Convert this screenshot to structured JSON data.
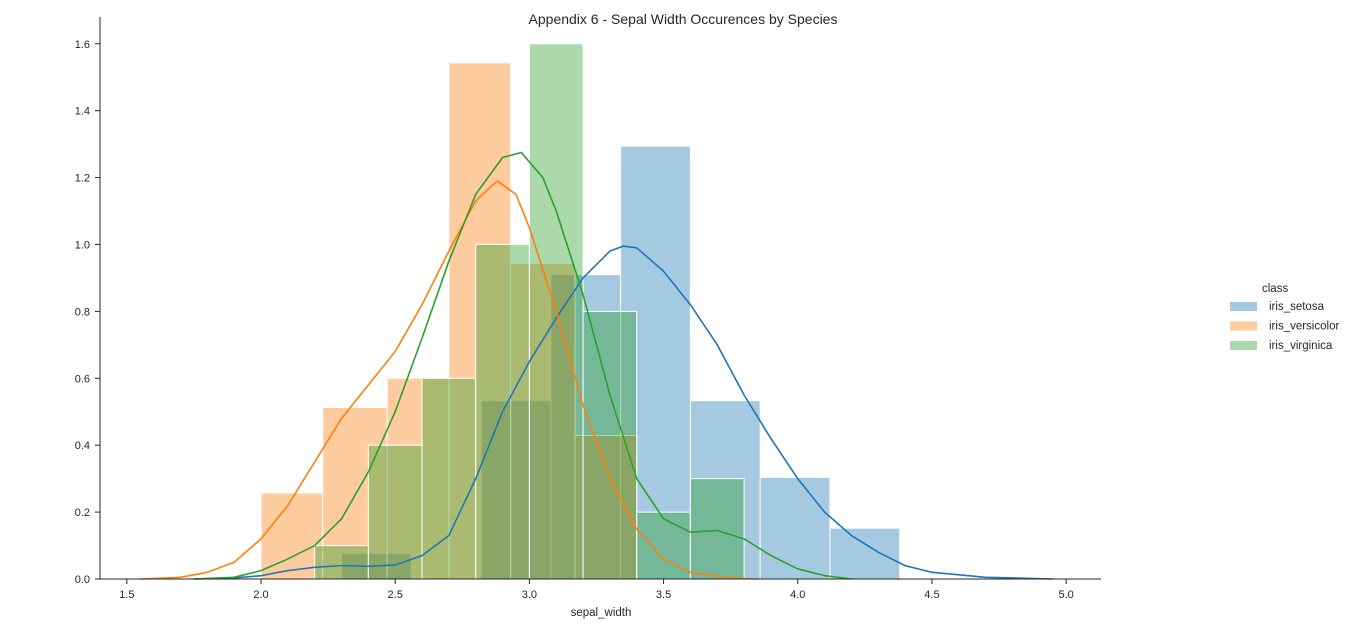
{
  "chart_data": {
    "type": "bar",
    "title": "Appendix 6 - Sepal Width Occurences by Species",
    "xlabel": "sepal_width",
    "ylabel": "",
    "xlim": [
      1.4,
      5.13
    ],
    "ylim": [
      0,
      1.68
    ],
    "x_ticks": [
      "1.5",
      "2.0",
      "2.5",
      "3.0",
      "3.5",
      "4.0",
      "4.5",
      "5.0"
    ],
    "y_ticks": [
      "0.0",
      "0.2",
      "0.4",
      "0.6",
      "0.8",
      "1.0",
      "1.2",
      "1.4",
      "1.6"
    ],
    "grid": false,
    "legend": {
      "title": "class",
      "placement": "right"
    },
    "series": [
      {
        "name": "iris_setosa",
        "color": "#1f77b4",
        "bins": [
          {
            "x0": 2.3,
            "x1": 2.56,
            "y": 0.077
          },
          {
            "x0": 2.56,
            "x1": 2.82,
            "y": 0.0
          },
          {
            "x0": 2.82,
            "x1": 3.08,
            "y": 0.533
          },
          {
            "x0": 3.08,
            "x1": 3.34,
            "y": 0.91
          },
          {
            "x0": 3.34,
            "x1": 3.6,
            "y": 1.294
          },
          {
            "x0": 3.6,
            "x1": 3.86,
            "y": 0.533
          },
          {
            "x0": 3.86,
            "x1": 4.12,
            "y": 0.304
          },
          {
            "x0": 4.12,
            "x1": 4.38,
            "y": 0.152
          }
        ],
        "kde": [
          [
            1.75,
            0.0
          ],
          [
            1.9,
            0.003
          ],
          [
            2.0,
            0.01
          ],
          [
            2.1,
            0.025
          ],
          [
            2.2,
            0.035
          ],
          [
            2.3,
            0.04
          ],
          [
            2.4,
            0.038
          ],
          [
            2.5,
            0.042
          ],
          [
            2.6,
            0.07
          ],
          [
            2.7,
            0.13
          ],
          [
            2.8,
            0.3
          ],
          [
            2.9,
            0.5
          ],
          [
            3.0,
            0.65
          ],
          [
            3.1,
            0.78
          ],
          [
            3.2,
            0.9
          ],
          [
            3.3,
            0.98
          ],
          [
            3.35,
            0.995
          ],
          [
            3.4,
            0.99
          ],
          [
            3.5,
            0.92
          ],
          [
            3.6,
            0.82
          ],
          [
            3.7,
            0.7
          ],
          [
            3.8,
            0.55
          ],
          [
            3.9,
            0.42
          ],
          [
            4.0,
            0.3
          ],
          [
            4.1,
            0.2
          ],
          [
            4.2,
            0.13
          ],
          [
            4.3,
            0.08
          ],
          [
            4.4,
            0.04
          ],
          [
            4.5,
            0.02
          ],
          [
            4.7,
            0.005
          ],
          [
            4.95,
            0.0
          ]
        ]
      },
      {
        "name": "iris_versicolor",
        "color": "#ff7f0e",
        "bins": [
          {
            "x0": 2.0,
            "x1": 2.23,
            "y": 0.257
          },
          {
            "x0": 2.23,
            "x1": 2.47,
            "y": 0.513
          },
          {
            "x0": 2.47,
            "x1": 2.7,
            "y": 0.6
          },
          {
            "x0": 2.7,
            "x1": 2.93,
            "y": 1.543
          },
          {
            "x0": 2.93,
            "x1": 3.17,
            "y": 0.943
          },
          {
            "x0": 3.17,
            "x1": 3.4,
            "y": 0.429
          }
        ],
        "kde": [
          [
            1.55,
            0.0
          ],
          [
            1.7,
            0.005
          ],
          [
            1.8,
            0.02
          ],
          [
            1.9,
            0.05
          ],
          [
            2.0,
            0.12
          ],
          [
            2.1,
            0.22
          ],
          [
            2.2,
            0.35
          ],
          [
            2.3,
            0.48
          ],
          [
            2.4,
            0.58
          ],
          [
            2.5,
            0.68
          ],
          [
            2.6,
            0.82
          ],
          [
            2.7,
            0.98
          ],
          [
            2.8,
            1.13
          ],
          [
            2.88,
            1.19
          ],
          [
            2.95,
            1.15
          ],
          [
            3.0,
            1.05
          ],
          [
            3.1,
            0.8
          ],
          [
            3.2,
            0.52
          ],
          [
            3.3,
            0.3
          ],
          [
            3.4,
            0.15
          ],
          [
            3.5,
            0.06
          ],
          [
            3.6,
            0.02
          ],
          [
            3.75,
            0.003
          ],
          [
            3.85,
            0.0
          ]
        ]
      },
      {
        "name": "iris_virginica",
        "color": "#2ca02c",
        "bins": [
          {
            "x0": 2.2,
            "x1": 2.4,
            "y": 0.1
          },
          {
            "x0": 2.4,
            "x1": 2.6,
            "y": 0.4
          },
          {
            "x0": 2.6,
            "x1": 2.8,
            "y": 0.6
          },
          {
            "x0": 2.8,
            "x1": 3.0,
            "y": 1.0
          },
          {
            "x0": 3.0,
            "x1": 3.2,
            "y": 1.6
          },
          {
            "x0": 3.2,
            "x1": 3.4,
            "y": 0.8
          },
          {
            "x0": 3.4,
            "x1": 3.6,
            "y": 0.2
          },
          {
            "x0": 3.6,
            "x1": 3.8,
            "y": 0.3
          }
        ],
        "kde": [
          [
            1.75,
            0.0
          ],
          [
            1.9,
            0.005
          ],
          [
            2.0,
            0.025
          ],
          [
            2.1,
            0.06
          ],
          [
            2.2,
            0.1
          ],
          [
            2.3,
            0.18
          ],
          [
            2.4,
            0.32
          ],
          [
            2.5,
            0.5
          ],
          [
            2.6,
            0.72
          ],
          [
            2.7,
            0.95
          ],
          [
            2.8,
            1.15
          ],
          [
            2.9,
            1.26
          ],
          [
            2.97,
            1.275
          ],
          [
            3.05,
            1.2
          ],
          [
            3.1,
            1.1
          ],
          [
            3.2,
            0.85
          ],
          [
            3.3,
            0.55
          ],
          [
            3.4,
            0.3
          ],
          [
            3.5,
            0.18
          ],
          [
            3.6,
            0.14
          ],
          [
            3.7,
            0.145
          ],
          [
            3.8,
            0.12
          ],
          [
            3.9,
            0.07
          ],
          [
            4.0,
            0.03
          ],
          [
            4.1,
            0.01
          ],
          [
            4.2,
            0.0
          ]
        ]
      }
    ]
  }
}
